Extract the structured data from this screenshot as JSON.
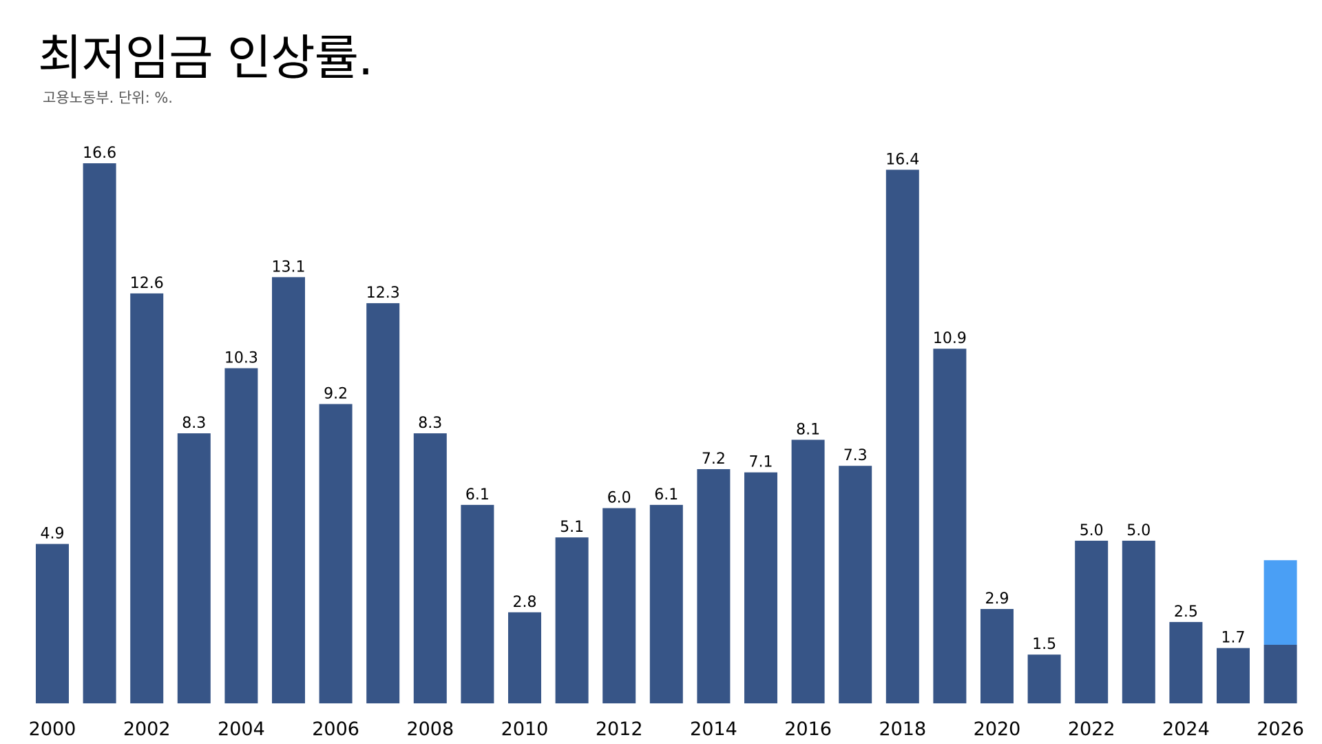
{
  "header": {
    "title": "최저임금 인상률.",
    "subtitle": "고용노동부.  단위: %."
  },
  "colors": {
    "bar": "#375587",
    "highlight": "#4a9ff5",
    "background": "#ffffff",
    "text": "#000000",
    "subtitle": "#555555"
  },
  "chart_data": {
    "type": "bar",
    "title": "최저임금 인상률.",
    "subtitle": "고용노동부.  단위: %.",
    "xlabel": "",
    "ylabel": "",
    "categories": [
      "2000",
      "2001",
      "2002",
      "2003",
      "2004",
      "2005",
      "2006",
      "2007",
      "2008",
      "2009",
      "2010",
      "2011",
      "2012",
      "2013",
      "2014",
      "2015",
      "2016",
      "2017",
      "2018",
      "2019",
      "2020",
      "2021",
      "2022",
      "2023",
      "2024",
      "2025",
      "2026"
    ],
    "values": [
      4.9,
      16.6,
      12.6,
      8.3,
      10.3,
      13.1,
      9.2,
      12.3,
      8.3,
      6.1,
      2.8,
      5.1,
      6.0,
      6.1,
      7.2,
      7.1,
      8.1,
      7.3,
      16.4,
      10.9,
      2.9,
      1.5,
      5.0,
      5.0,
      2.5,
      1.7,
      null
    ],
    "value_labels": [
      "4.9",
      "16.6",
      "12.6",
      "8.3",
      "10.3",
      "13.1",
      "9.2",
      "12.3",
      "8.3",
      "6.1",
      "2.8",
      "5.1",
      "6.0",
      "6.1",
      "7.2",
      "7.1",
      "8.1",
      "7.3",
      "16.4",
      "10.9",
      "2.9",
      "1.5",
      "5.0",
      "5.0",
      "2.5",
      "1.7",
      ""
    ],
    "x_tick_labels": [
      "2000",
      "",
      "2002",
      "",
      "2004",
      "",
      "2006",
      "",
      "2008",
      "",
      "2010",
      "",
      "2012",
      "",
      "2014",
      "",
      "2016",
      "",
      "2018",
      "",
      "2020",
      "",
      "2022",
      "",
      "2024",
      "",
      "2026"
    ],
    "highlight": {
      "category": "2026",
      "base_value": 1.8,
      "top_value": 4.4
    },
    "ylim": [
      0,
      16.6
    ],
    "grid": false,
    "legend": "none"
  }
}
